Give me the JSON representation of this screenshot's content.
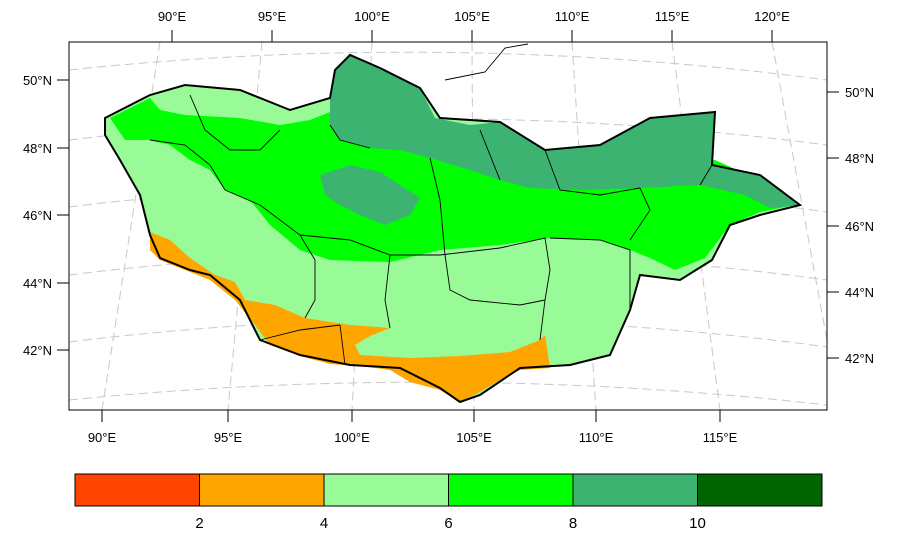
{
  "map": {
    "top_lon_labels": [
      "90°E",
      "95°E",
      "100°E",
      "105°E",
      "110°E",
      "115°E",
      "120°E"
    ],
    "bottom_lon_labels": [
      "90°E",
      "95°E",
      "100°E",
      "105°E",
      "110°E",
      "115°E"
    ],
    "left_lat_labels": [
      "50°N",
      "48°N",
      "46°N",
      "44°N",
      "42°N"
    ],
    "right_lat_labels": [
      "50°N",
      "48°N",
      "46°N",
      "44°N",
      "42°N"
    ]
  },
  "colorbar": {
    "labels": [
      "2",
      "4",
      "6",
      "8",
      "10"
    ],
    "colors": [
      "#ff4500",
      "#ffa500",
      "#98fb98",
      "#00ff00",
      "#3cb371",
      "#006400"
    ]
  },
  "colors": {
    "border": "#000000",
    "gridline": "#bdbdbd"
  }
}
